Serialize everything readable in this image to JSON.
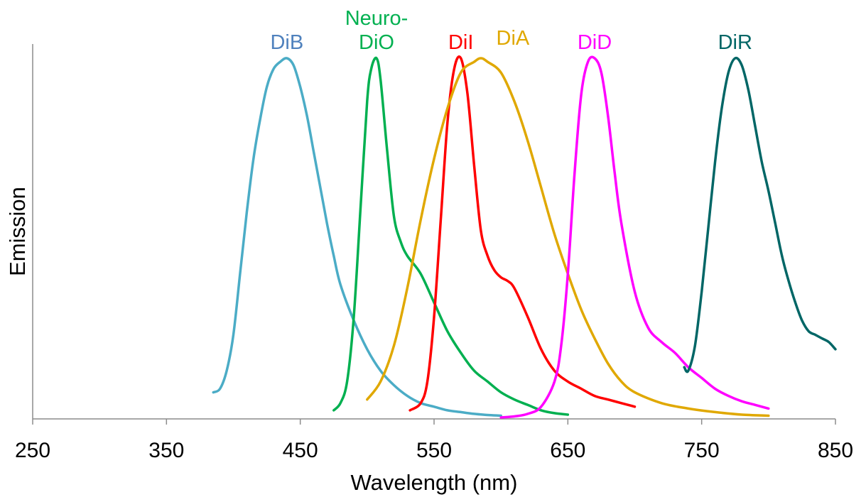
{
  "chart_data": {
    "type": "line",
    "xlabel": "Wavelength (nm)",
    "ylabel": "Emission",
    "xlim": [
      250,
      850
    ],
    "ylim": [
      0,
      1
    ],
    "x_ticks": [
      "250",
      "350",
      "450",
      "550",
      "650",
      "750",
      "850"
    ],
    "grid": false,
    "series": [
      {
        "name": "DiB",
        "label_lines": [
          "DiB"
        ],
        "color": "#4BACC6",
        "label_color": "#4F81BD",
        "x": [
          385,
          390,
          395,
          400,
          405,
          410,
          415,
          420,
          425,
          430,
          435,
          440,
          445,
          450,
          455,
          460,
          465,
          470,
          475,
          480,
          490,
          500,
          510,
          520,
          530,
          540,
          550,
          560,
          570,
          580,
          590,
          600
        ],
        "y": [
          0.07,
          0.08,
          0.13,
          0.23,
          0.4,
          0.57,
          0.72,
          0.83,
          0.92,
          0.97,
          0.99,
          1.0,
          0.98,
          0.92,
          0.84,
          0.74,
          0.64,
          0.54,
          0.45,
          0.37,
          0.27,
          0.19,
          0.13,
          0.09,
          0.06,
          0.04,
          0.03,
          0.02,
          0.015,
          0.01,
          0.007,
          0.005
        ]
      },
      {
        "name": "Neuro-DiO",
        "label_lines": [
          "Neuro-",
          "DiO"
        ],
        "color": "#00B050",
        "label_color": "#00B050",
        "x": [
          475,
          480,
          485,
          490,
          495,
          500,
          503,
          507,
          510,
          515,
          520,
          525,
          530,
          540,
          550,
          560,
          570,
          580,
          590,
          600,
          610,
          620,
          630,
          640,
          650
        ],
        "y": [
          0.02,
          0.04,
          0.1,
          0.28,
          0.58,
          0.88,
          0.97,
          1.0,
          0.94,
          0.74,
          0.56,
          0.49,
          0.45,
          0.4,
          0.32,
          0.24,
          0.18,
          0.13,
          0.1,
          0.07,
          0.05,
          0.035,
          0.02,
          0.012,
          0.008
        ]
      },
      {
        "name": "DiI",
        "label_lines": [
          "DiI"
        ],
        "color": "#FF0000",
        "label_color": "#FF0000",
        "x": [
          532,
          540,
          545,
          550,
          555,
          560,
          565,
          570,
          575,
          580,
          585,
          590,
          595,
          600,
          605,
          610,
          620,
          630,
          640,
          650,
          660,
          670,
          680,
          690,
          700
        ],
        "y": [
          0.02,
          0.04,
          0.1,
          0.28,
          0.55,
          0.82,
          0.97,
          1.0,
          0.9,
          0.7,
          0.52,
          0.45,
          0.41,
          0.39,
          0.38,
          0.36,
          0.28,
          0.19,
          0.13,
          0.1,
          0.08,
          0.06,
          0.05,
          0.04,
          0.03
        ]
      },
      {
        "name": "DiA",
        "label_lines": [
          "DiA"
        ],
        "color": "#E0A800",
        "label_color": "#E0A800",
        "x": [
          500,
          510,
          520,
          530,
          540,
          550,
          560,
          570,
          580,
          585,
          590,
          600,
          610,
          620,
          630,
          640,
          650,
          660,
          670,
          680,
          690,
          700,
          720,
          740,
          760,
          780,
          800
        ],
        "y": [
          0.05,
          0.1,
          0.2,
          0.36,
          0.55,
          0.72,
          0.86,
          0.96,
          0.99,
          1.0,
          0.99,
          0.96,
          0.88,
          0.77,
          0.64,
          0.51,
          0.4,
          0.3,
          0.22,
          0.15,
          0.1,
          0.07,
          0.04,
          0.025,
          0.015,
          0.008,
          0.005
        ]
      },
      {
        "name": "DiD",
        "label_lines": [
          "DiD"
        ],
        "color": "#FF00FF",
        "label_color": "#FF00FF",
        "x": [
          600,
          610,
          620,
          630,
          640,
          645,
          650,
          655,
          660,
          665,
          670,
          675,
          680,
          685,
          690,
          700,
          710,
          720,
          730,
          740,
          750,
          760,
          770,
          780,
          790,
          800
        ],
        "y": [
          0.0,
          0.003,
          0.01,
          0.03,
          0.1,
          0.2,
          0.4,
          0.68,
          0.9,
          0.99,
          1.0,
          0.96,
          0.84,
          0.68,
          0.54,
          0.35,
          0.25,
          0.21,
          0.18,
          0.14,
          0.11,
          0.08,
          0.06,
          0.045,
          0.035,
          0.025
        ]
      },
      {
        "name": "DiR",
        "label_lines": [
          "DiR"
        ],
        "color": "#006666",
        "label_color": "#006666",
        "x": [
          737,
          740,
          745,
          750,
          755,
          760,
          765,
          770,
          775,
          780,
          785,
          790,
          795,
          800,
          805,
          810,
          815,
          820,
          825,
          830,
          835,
          840,
          845,
          850
        ],
        "y": [
          0.14,
          0.13,
          0.2,
          0.35,
          0.53,
          0.71,
          0.86,
          0.96,
          1.0,
          0.98,
          0.91,
          0.81,
          0.71,
          0.63,
          0.54,
          0.45,
          0.38,
          0.32,
          0.27,
          0.24,
          0.23,
          0.22,
          0.21,
          0.19
        ]
      }
    ]
  }
}
